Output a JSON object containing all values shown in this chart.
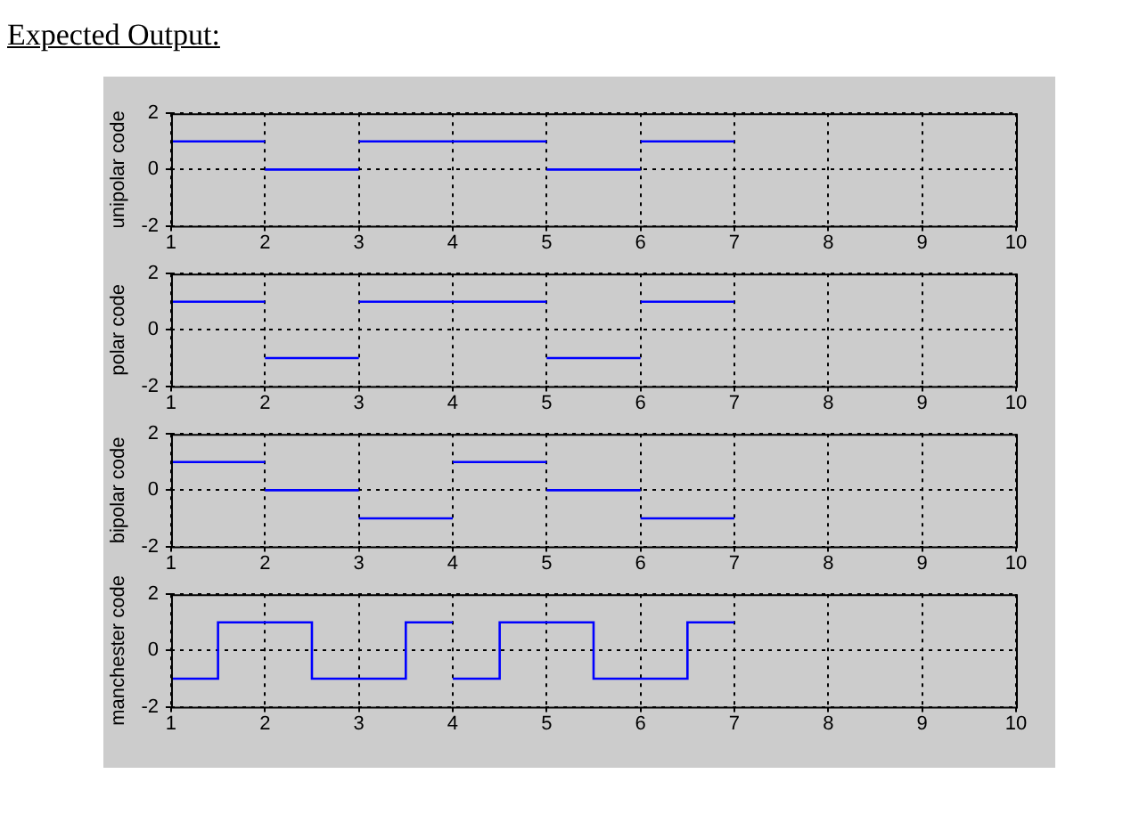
{
  "chart_data": [
    {
      "type": "line",
      "title": "Expected Output:",
      "ylabel": "unipolar code",
      "xlim": [
        1,
        10
      ],
      "xticks": [
        1,
        2,
        3,
        4,
        5,
        6,
        7,
        8,
        9,
        10
      ],
      "ylim": [
        -2,
        2
      ],
      "yticks": [
        -2,
        0,
        2
      ],
      "grid": true,
      "marker": "none",
      "line_style": "solid",
      "legend": false,
      "series": [
        {
          "color": "#0000ff",
          "x": [
            1,
            2
          ],
          "values": [
            1,
            1
          ]
        },
        {
          "color": "#0000ff",
          "x": [
            2,
            3
          ],
          "values": [
            0,
            0
          ]
        },
        {
          "color": "#0000ff",
          "x": [
            3,
            4,
            5
          ],
          "values": [
            1,
            1,
            1
          ]
        },
        {
          "color": "#0000ff",
          "x": [
            5,
            6
          ],
          "values": [
            0,
            0
          ]
        },
        {
          "color": "#0000ff",
          "x": [
            6,
            7
          ],
          "values": [
            1,
            1
          ]
        }
      ]
    },
    {
      "type": "line",
      "ylabel": "polar code",
      "xlim": [
        1,
        10
      ],
      "xticks": [
        1,
        2,
        3,
        4,
        5,
        6,
        7,
        8,
        9,
        10
      ],
      "ylim": [
        -2,
        2
      ],
      "yticks": [
        -2,
        0,
        2
      ],
      "grid": true,
      "marker": "none",
      "line_style": "solid",
      "legend": false,
      "series": [
        {
          "color": "#0000ff",
          "x": [
            1,
            2
          ],
          "values": [
            1,
            1
          ]
        },
        {
          "color": "#0000ff",
          "x": [
            2,
            3
          ],
          "values": [
            -1,
            -1
          ]
        },
        {
          "color": "#0000ff",
          "x": [
            3,
            4,
            5
          ],
          "values": [
            1,
            1,
            1
          ]
        },
        {
          "color": "#0000ff",
          "x": [
            5,
            6
          ],
          "values": [
            -1,
            -1
          ]
        },
        {
          "color": "#0000ff",
          "x": [
            6,
            7
          ],
          "values": [
            1,
            1
          ]
        }
      ]
    },
    {
      "type": "line",
      "ylabel": "bipolar code",
      "xlim": [
        1,
        10
      ],
      "xticks": [
        1,
        2,
        3,
        4,
        5,
        6,
        7,
        8,
        9,
        10
      ],
      "ylim": [
        -2,
        2
      ],
      "yticks": [
        -2,
        0,
        2
      ],
      "grid": true,
      "marker": "none",
      "line_style": "solid",
      "legend": false,
      "series": [
        {
          "color": "#0000ff",
          "x": [
            1,
            2
          ],
          "values": [
            1,
            1
          ]
        },
        {
          "color": "#0000ff",
          "x": [
            2,
            3
          ],
          "values": [
            0,
            0
          ]
        },
        {
          "color": "#0000ff",
          "x": [
            3,
            4
          ],
          "values": [
            -1,
            -1
          ]
        },
        {
          "color": "#0000ff",
          "x": [
            4,
            5
          ],
          "values": [
            1,
            1
          ]
        },
        {
          "color": "#0000ff",
          "x": [
            5,
            6
          ],
          "values": [
            0,
            0
          ]
        },
        {
          "color": "#0000ff",
          "x": [
            6,
            7
          ],
          "values": [
            -1,
            -1
          ]
        }
      ]
    },
    {
      "type": "line",
      "ylabel": "manchester code",
      "xlim": [
        1,
        10
      ],
      "xticks": [
        1,
        2,
        3,
        4,
        5,
        6,
        7,
        8,
        9,
        10
      ],
      "ylim": [
        -2,
        2
      ],
      "yticks": [
        -2,
        0,
        2
      ],
      "grid": true,
      "marker": "none",
      "line_style": "solid",
      "legend": false,
      "series": [
        {
          "color": "#0000ff",
          "x": [
            1,
            1.5,
            1.5,
            2.5,
            2.5,
            3.5,
            3.5,
            4
          ],
          "values": [
            -1,
            -1,
            1,
            1,
            -1,
            -1,
            1,
            1
          ]
        },
        {
          "color": "#0000ff",
          "x": [
            4,
            4.5,
            4.5,
            5.5,
            5.5,
            6.5,
            6.5,
            7
          ],
          "values": [
            -1,
            -1,
            1,
            1,
            -1,
            -1,
            1,
            1
          ]
        }
      ]
    }
  ]
}
